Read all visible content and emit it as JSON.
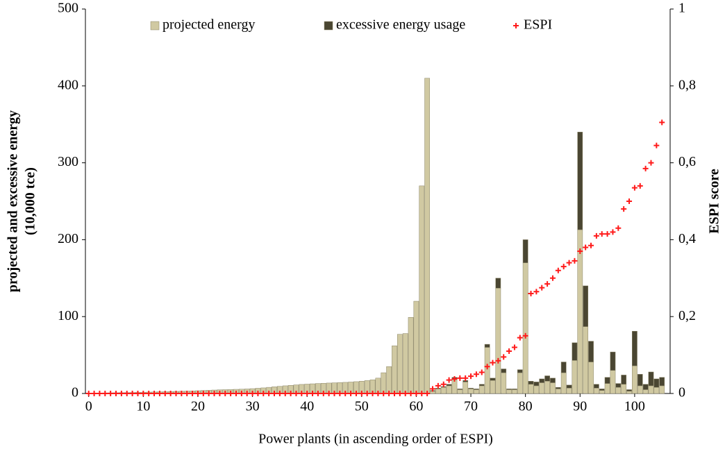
{
  "chart_data": {
    "type": "bar",
    "xlabel": "Power plants (in ascending order of ESPI)",
    "ylabel": [
      "projected and excessive energy",
      "(10,000 tce)"
    ],
    "y2label": "ESPI score",
    "legend": "top",
    "x": [
      0,
      1,
      2,
      3,
      4,
      5,
      6,
      7,
      8,
      9,
      10,
      11,
      12,
      13,
      14,
      15,
      16,
      17,
      18,
      19,
      20,
      21,
      22,
      23,
      24,
      25,
      26,
      27,
      28,
      29,
      30,
      31,
      32,
      33,
      34,
      35,
      36,
      37,
      38,
      39,
      40,
      41,
      42,
      43,
      44,
      45,
      46,
      47,
      48,
      49,
      50,
      51,
      52,
      53,
      54,
      55,
      56,
      57,
      58,
      59,
      60,
      61,
      62,
      63,
      64,
      65,
      66,
      67,
      68,
      69,
      70,
      71,
      72,
      73,
      74,
      75,
      76,
      77,
      78,
      79,
      80,
      81,
      82,
      83,
      84,
      85,
      86,
      87,
      88,
      89,
      90,
      91,
      92,
      93,
      94,
      95,
      96,
      97,
      98,
      99,
      100,
      101,
      102,
      103,
      104,
      105
    ],
    "xlim": [
      -0.6,
      106.5
    ],
    "xticks": [
      0,
      10,
      20,
      30,
      40,
      50,
      60,
      70,
      80,
      90,
      100
    ],
    "ylim": [
      0,
      500
    ],
    "yticks": [
      0,
      100,
      200,
      300,
      400,
      500
    ],
    "y2lim": [
      0,
      1
    ],
    "y2ticks": [
      0,
      {
        "value": 0.2,
        "label": "0,2"
      },
      {
        "value": 0.4,
        "label": "0,4"
      },
      {
        "value": 0.6,
        "label": "0,6"
      },
      {
        "value": 0.8,
        "label": "0,8"
      },
      1
    ],
    "series": [
      {
        "name": "projected energy",
        "type": "bar",
        "color": "#d0c9a2",
        "values": [
          0.5,
          0.6,
          0.7,
          0.8,
          0.9,
          1,
          1.1,
          1.2,
          1.3,
          1.5,
          1.6,
          1.8,
          2,
          2.2,
          2.3,
          2.5,
          2.7,
          2.9,
          3.1,
          3.3,
          3.6,
          3.9,
          4.2,
          4.5,
          4.8,
          5,
          5.2,
          5.4,
          5.6,
          5.9,
          6.3,
          6.8,
          7.3,
          8,
          8.7,
          9.3,
          10,
          10.6,
          11.2,
          11.8,
          12.2,
          12.6,
          13,
          13.3,
          13.6,
          13.9,
          14.2,
          14.5,
          14.9,
          15.4,
          16,
          16.8,
          17.8,
          20,
          27,
          35,
          62,
          77,
          78,
          99,
          120,
          270,
          410,
          3,
          6,
          8,
          10,
          18,
          5,
          15,
          6,
          5,
          10,
          60,
          17,
          137,
          27,
          5,
          5,
          27,
          170,
          12,
          10,
          14,
          16,
          14,
          6,
          27,
          7,
          43,
          213,
          87,
          41,
          7,
          4,
          13,
          30,
          8,
          12,
          3,
          36,
          10,
          5,
          10,
          8,
          10
        ]
      },
      {
        "name": "excessive energy usage",
        "type": "bar",
        "color": "#4a4632",
        "values": [
          0,
          0,
          0,
          0,
          0,
          0,
          0,
          0,
          0,
          0,
          0,
          0,
          0,
          0,
          0,
          0,
          0,
          0,
          0,
          0,
          0,
          0,
          0,
          0,
          0,
          0,
          0,
          0,
          0,
          0,
          0,
          0,
          0,
          0,
          0,
          0,
          0,
          0,
          0,
          0,
          0,
          0,
          0,
          0,
          0,
          0,
          0,
          0,
          0,
          0,
          0,
          0,
          0,
          0,
          0,
          0,
          0,
          0,
          0,
          0,
          0,
          0,
          0,
          1,
          1,
          1,
          2,
          3,
          1,
          2,
          1,
          1,
          2,
          4,
          3,
          13,
          5,
          1,
          1,
          4,
          30,
          4,
          5,
          5,
          7,
          6,
          2,
          14,
          4,
          23,
          127,
          53,
          27,
          5,
          2,
          8,
          24,
          5,
          12,
          2,
          45,
          15,
          7,
          18,
          11,
          11
        ]
      },
      {
        "name": "ESPI",
        "type": "scatter",
        "axis": "y2",
        "color": "#ff1a1a",
        "values": [
          0,
          0,
          0,
          0,
          0,
          0,
          0,
          0,
          0,
          0,
          0,
          0,
          0,
          0,
          0,
          0,
          0,
          0,
          0,
          0,
          0,
          0,
          0,
          0,
          0,
          0,
          0,
          0,
          0,
          0,
          0,
          0,
          0,
          0,
          0,
          0,
          0,
          0,
          0,
          0,
          0,
          0,
          0,
          0,
          0,
          0,
          0,
          0,
          0,
          0,
          0,
          0,
          0,
          0,
          0,
          0,
          0,
          0,
          0,
          0,
          0,
          0,
          0,
          0.012,
          0.02,
          0.024,
          0.035,
          0.038,
          0.04,
          0.04,
          0.045,
          0.05,
          0.055,
          0.07,
          0.08,
          0.085,
          0.095,
          0.11,
          0.12,
          0.145,
          0.15,
          0.26,
          0.265,
          0.275,
          0.285,
          0.3,
          0.32,
          0.33,
          0.34,
          0.345,
          0.37,
          0.38,
          0.385,
          0.41,
          0.415,
          0.415,
          0.42,
          0.43,
          0.48,
          0.5,
          0.535,
          0.54,
          0.585,
          0.6,
          0.645,
          0.705
        ]
      }
    ]
  }
}
